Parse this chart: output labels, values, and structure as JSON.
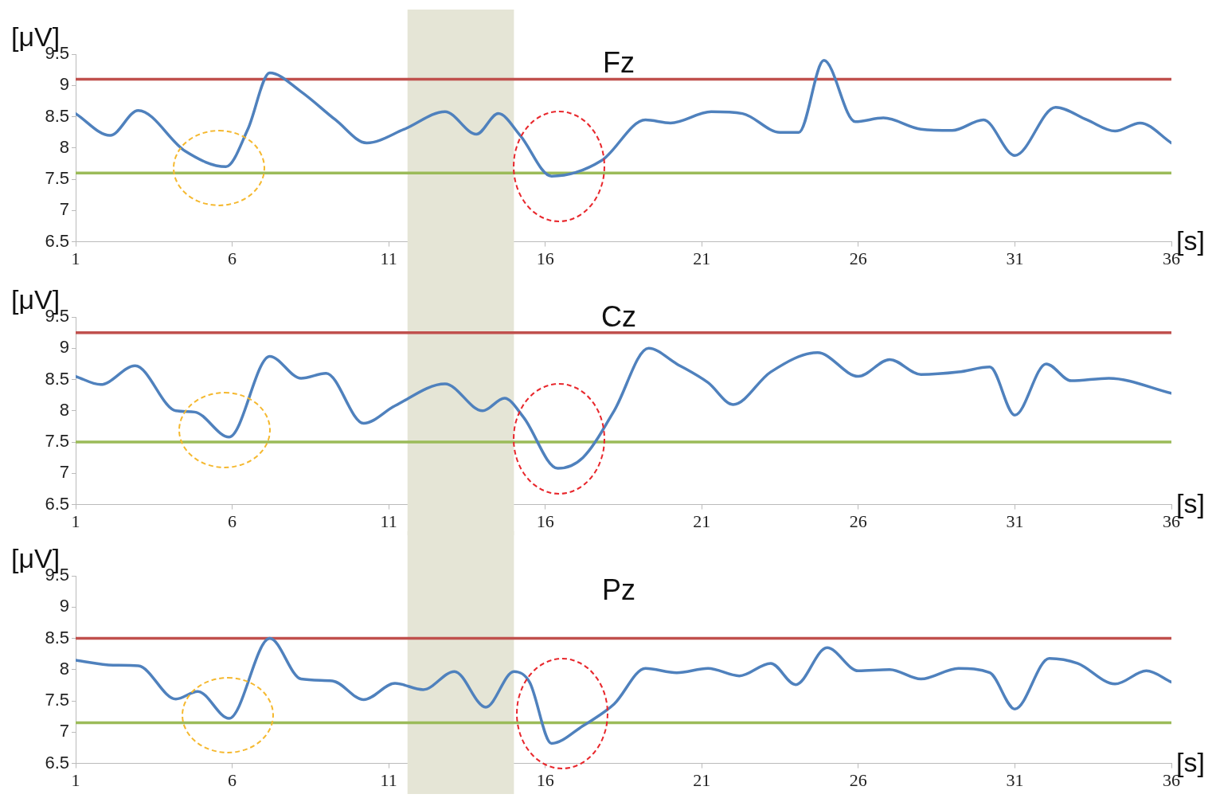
{
  "chart_data": [
    {
      "type": "line",
      "title": "Fz",
      "xlabel": "[s]",
      "ylabel": "[μV]",
      "xlim": [
        1,
        36
      ],
      "xticks": [
        1,
        6,
        11,
        16,
        21,
        26,
        31,
        36
      ],
      "ylim": [
        6.5,
        9.5
      ],
      "yticks": [
        6.5,
        7,
        7.5,
        8,
        8.5,
        9,
        9.5
      ],
      "grid": false,
      "legend": false,
      "line_style": "solid",
      "marker": "none",
      "bands": [
        {
          "axis": "x",
          "from": 11.6,
          "to": 15,
          "color": "#e5e5d6"
        }
      ],
      "ref_lines": [
        {
          "axis": "y",
          "value": 9.1,
          "color": "#c0504d"
        },
        {
          "axis": "y",
          "value": 7.6,
          "color": "#9bbb59"
        }
      ],
      "series": [
        {
          "color": "#4f81bd",
          "x": [
            1,
            2.1,
            3,
            4.5,
            5.8,
            6.5,
            7.2,
            8.2,
            9.3,
            10.3,
            11.5,
            12.8,
            13.8,
            14.5,
            15.2,
            16.2,
            17.8,
            19.2,
            20,
            21.3,
            22.3,
            23.5,
            24.1,
            24.9,
            25.9,
            26.8,
            28,
            29,
            30,
            31,
            32.3,
            33.3,
            34.2,
            35,
            36
          ],
          "values": [
            8.55,
            8.2,
            8.6,
            7.95,
            7.7,
            8.3,
            9.2,
            8.9,
            8.45,
            8.08,
            8.3,
            8.58,
            8.22,
            8.55,
            8.2,
            7.55,
            7.8,
            8.45,
            8.4,
            8.58,
            8.55,
            8.25,
            8.25,
            9.4,
            8.42,
            8.48,
            8.3,
            8.28,
            8.45,
            7.88,
            8.65,
            8.45,
            8.27,
            8.4,
            8.08
          ]
        }
      ]
    },
    {
      "type": "line",
      "title": "Cz",
      "xlabel": "[s]",
      "ylabel": "[μV]",
      "xlim": [
        1,
        36
      ],
      "xticks": [
        1,
        6,
        11,
        16,
        21,
        26,
        31,
        36
      ],
      "ylim": [
        6.5,
        9.5
      ],
      "yticks": [
        6.5,
        7,
        7.5,
        8,
        8.5,
        9,
        9.5
      ],
      "grid": false,
      "legend": false,
      "line_style": "solid",
      "marker": "none",
      "bands": [
        {
          "axis": "x",
          "from": 11.6,
          "to": 15,
          "color": "#e5e5d6"
        }
      ],
      "ref_lines": [
        {
          "axis": "y",
          "value": 9.25,
          "color": "#c0504d"
        },
        {
          "axis": "y",
          "value": 7.5,
          "color": "#9bbb59"
        }
      ],
      "series": [
        {
          "color": "#4f81bd",
          "x": [
            1,
            1.8,
            2.9,
            4.2,
            4.8,
            5.9,
            7.2,
            8.2,
            9,
            10.2,
            11.2,
            12.8,
            14,
            14.7,
            15.3,
            16.4,
            17.2,
            18.2,
            19.3,
            20.2,
            21.2,
            22,
            23.2,
            24.7,
            26,
            27,
            28,
            29.2,
            30.2,
            31,
            32,
            32.8,
            34,
            36
          ],
          "values": [
            8.55,
            8.42,
            8.72,
            8,
            7.98,
            7.58,
            8.87,
            8.52,
            8.6,
            7.8,
            8.08,
            8.43,
            8,
            8.2,
            7.9,
            7.08,
            7.25,
            8,
            9,
            8.75,
            8.45,
            8.1,
            8.62,
            8.93,
            8.55,
            8.82,
            8.58,
            8.62,
            8.7,
            7.93,
            8.75,
            8.48,
            8.52,
            8.28
          ]
        }
      ]
    },
    {
      "type": "line",
      "title": "Pz",
      "xlabel": "[s]",
      "ylabel": "[μV]",
      "xlim": [
        1,
        36
      ],
      "xticks": [
        1,
        6,
        11,
        16,
        21,
        26,
        31,
        36
      ],
      "ylim": [
        6.5,
        9.5
      ],
      "yticks": [
        6.5,
        7,
        7.5,
        8,
        8.5,
        9,
        9.5
      ],
      "grid": false,
      "legend": false,
      "line_style": "solid",
      "marker": "none",
      "bands": [
        {
          "axis": "x",
          "from": 11.6,
          "to": 15,
          "color": "#e5e5d6"
        }
      ],
      "ref_lines": [
        {
          "axis": "y",
          "value": 8.5,
          "color": "#c0504d"
        },
        {
          "axis": "y",
          "value": 7.15,
          "color": "#9bbb59"
        }
      ],
      "series": [
        {
          "color": "#4f81bd",
          "x": [
            1,
            2.2,
            3,
            4.2,
            4.9,
            5.9,
            7.2,
            8.2,
            9.2,
            10.2,
            11.2,
            12.1,
            13.1,
            14.1,
            15,
            15.5,
            16.2,
            17.2,
            18.2,
            19.2,
            20.2,
            21.2,
            22.2,
            23.2,
            24,
            25,
            26,
            27,
            28,
            29.2,
            30.2,
            31,
            32.1,
            33,
            34.2,
            35.2,
            36
          ],
          "values": [
            8.15,
            8.07,
            8.06,
            7.53,
            7.65,
            7.22,
            8.5,
            7.85,
            7.82,
            7.52,
            7.78,
            7.68,
            7.97,
            7.4,
            7.97,
            7.8,
            6.82,
            7.1,
            7.45,
            8.02,
            7.95,
            8.02,
            7.9,
            8.1,
            7.76,
            8.35,
            7.98,
            8,
            7.85,
            8.02,
            7.95,
            7.37,
            8.18,
            8.1,
            7.77,
            7.98,
            7.8
          ]
        }
      ]
    }
  ]
}
